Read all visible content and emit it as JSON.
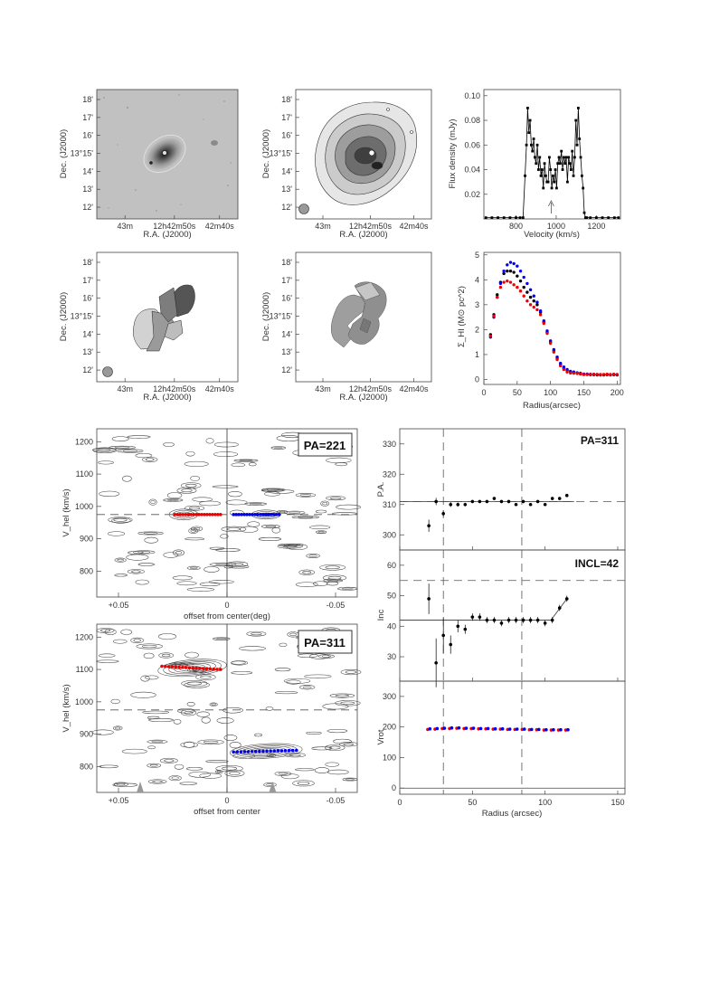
{
  "chart_data": [
    {
      "type": "image",
      "panel": "optical",
      "xlabel": "R.A. (J2000)",
      "ylabel": "Dec. (J2000)",
      "x_ticks": [
        "43m",
        "12h42m50s",
        "42m40s"
      ],
      "y_ticks": [
        "18'",
        "17'",
        "16'",
        "13°15'",
        "14'",
        "13'",
        "12'"
      ]
    },
    {
      "type": "contour",
      "panel": "HI total intensity",
      "xlabel": "R.A. (J2000)",
      "ylabel": "Dec. (J2000)",
      "x_ticks": [
        "43m",
        "12h42m50s",
        "42m40s"
      ],
      "y_ticks": [
        "18'",
        "17'",
        "16'",
        "13°15'",
        "14'",
        "13'",
        "12'"
      ]
    },
    {
      "type": "line",
      "panel": "global HI profile",
      "xlabel": "Velocity (km/s)",
      "ylabel": "Flux density (mJy)",
      "xlim": [
        640,
        1320
      ],
      "ylim": [
        0,
        0.105
      ],
      "x_ticks": [
        800,
        1000,
        1200
      ],
      "y_ticks": [
        0.02,
        0.04,
        0.06,
        0.08,
        0.1
      ],
      "systemic_marker_x": 975,
      "x": [
        650,
        680,
        710,
        740,
        770,
        800,
        820,
        835,
        845,
        852,
        858,
        864,
        870,
        876,
        882,
        888,
        894,
        900,
        906,
        912,
        918,
        924,
        930,
        936,
        942,
        948,
        954,
        960,
        966,
        972,
        978,
        984,
        990,
        996,
        1002,
        1008,
        1014,
        1020,
        1026,
        1032,
        1038,
        1044,
        1050,
        1056,
        1062,
        1068,
        1074,
        1080,
        1086,
        1092,
        1098,
        1104,
        1110,
        1116,
        1122,
        1128,
        1134,
        1140,
        1146,
        1152,
        1170,
        1200,
        1230,
        1260,
        1290,
        1310
      ],
      "y": [
        0.001,
        0.001,
        0.001,
        0.001,
        0.001,
        0.001,
        0.001,
        0.001,
        0.035,
        0.06,
        0.09,
        0.07,
        0.08,
        0.06,
        0.055,
        0.065,
        0.05,
        0.045,
        0.06,
        0.04,
        0.05,
        0.035,
        0.04,
        0.025,
        0.045,
        0.035,
        0.03,
        0.03,
        0.05,
        0.04,
        0.025,
        0.035,
        0.03,
        0.04,
        0.025,
        0.045,
        0.05,
        0.045,
        0.055,
        0.04,
        0.05,
        0.045,
        0.05,
        0.03,
        0.05,
        0.045,
        0.04,
        0.055,
        0.035,
        0.05,
        0.08,
        0.06,
        0.09,
        0.065,
        0.05,
        0.035,
        0.025,
        0.005,
        0.001,
        0.001,
        0.001,
        0.001,
        0.001,
        0.001,
        0.001,
        0.001
      ]
    },
    {
      "type": "image",
      "panel": "velocity field (receding/approaching)",
      "xlabel": "R.A. (J2000)",
      "ylabel": "Dec. (J2000)",
      "x_ticks": [
        "43m",
        "12h42m50s",
        "42m40s"
      ],
      "y_ticks": [
        "18'",
        "17'",
        "16'",
        "13°15'",
        "14'",
        "13'",
        "12'"
      ]
    },
    {
      "type": "image",
      "panel": "velocity dispersion",
      "xlabel": "R.A. (J2000)",
      "ylabel": "Dec. (J2000)",
      "x_ticks": [
        "43m",
        "12h42m50s",
        "42m40s"
      ],
      "y_ticks": [
        "18'",
        "17'",
        "16'",
        "13°15'",
        "14'",
        "13'",
        "12'"
      ]
    },
    {
      "type": "scatter",
      "panel": "surface density profile",
      "xlabel": "Radius(arcsec)",
      "ylabel": "Σ_HI (M⊙ pc^2)",
      "xlim": [
        0,
        205
      ],
      "ylim": [
        -0.2,
        5.1
      ],
      "x_ticks": [
        0,
        50,
        100,
        150,
        200
      ],
      "y_ticks": [
        0,
        1,
        2,
        3,
        4,
        5
      ],
      "x": [
        10,
        15,
        20,
        25,
        30,
        35,
        40,
        45,
        50,
        55,
        60,
        65,
        70,
        75,
        80,
        85,
        90,
        95,
        100,
        105,
        110,
        115,
        120,
        125,
        130,
        135,
        140,
        145,
        150,
        155,
        160,
        165,
        170,
        175,
        180,
        185,
        190,
        195,
        200
      ],
      "series": [
        {
          "values": [
            1.8,
            2.6,
            3.4,
            3.9,
            4.25,
            4.35,
            4.35,
            4.3,
            4.15,
            3.95,
            3.7,
            3.5,
            3.3,
            3.15,
            3.0,
            2.7,
            2.3,
            1.9,
            1.5,
            1.15,
            0.85,
            0.6,
            0.45,
            0.35,
            0.3,
            0.28,
            0.25,
            0.22,
            0.2,
            0.2,
            0.19,
            0.19,
            0.18,
            0.18,
            0.18,
            0.19,
            0.18,
            0.19,
            0.18
          ],
          "color": "#000000"
        },
        {
          "values": [
            1.7,
            2.5,
            3.3,
            3.85,
            4.35,
            4.6,
            4.7,
            4.65,
            4.55,
            4.35,
            4.1,
            3.85,
            3.6,
            3.35,
            3.1,
            2.75,
            2.35,
            1.95,
            1.55,
            1.2,
            0.9,
            0.65,
            0.5,
            0.4,
            0.33,
            0.3,
            0.27,
            0.25,
            0.22,
            0.22,
            0.21,
            0.2,
            0.2,
            0.19,
            0.19,
            0.2,
            0.19,
            0.2,
            0.19
          ],
          "color": "#0000ee"
        },
        {
          "values": [
            1.75,
            2.55,
            3.3,
            3.7,
            3.9,
            3.95,
            3.9,
            3.8,
            3.7,
            3.55,
            3.35,
            3.15,
            3.0,
            2.9,
            2.8,
            2.6,
            2.25,
            1.85,
            1.45,
            1.1,
            0.8,
            0.55,
            0.4,
            0.3,
            0.26,
            0.25,
            0.24,
            0.22,
            0.2,
            0.2,
            0.2,
            0.21,
            0.2,
            0.2,
            0.2,
            0.21,
            0.2,
            0.21,
            0.2
          ],
          "color": "#ee0000"
        }
      ]
    },
    {
      "type": "contour",
      "panel": "position-velocity diagram minor axis",
      "label": "PA=221",
      "xlabel": "offset from center(deg)",
      "ylabel": "V_hel (km/s)",
      "xlim": [
        0.06,
        -0.06
      ],
      "ylim": [
        720,
        1240
      ],
      "x_ticks": [
        "+0.05",
        "0",
        "-0.05"
      ],
      "y_ticks": [
        800,
        900,
        1000,
        1100,
        1200
      ],
      "systemic_velocity": 975,
      "red_points": {
        "x_range": [
          0.024,
          0.003
        ],
        "v": 975
      },
      "blue_points": {
        "x_range": [
          -0.003,
          -0.024
        ],
        "v": 975
      }
    },
    {
      "type": "contour",
      "panel": "position-velocity diagram major axis",
      "label": "PA=311",
      "xlabel": "offset from center",
      "ylabel": "V_hel (km/s)",
      "xlim": [
        0.06,
        -0.06
      ],
      "ylim": [
        720,
        1240
      ],
      "x_ticks": [
        "+0.05",
        "0",
        "-0.05"
      ],
      "y_ticks": [
        800,
        900,
        1000,
        1100,
        1200
      ],
      "systemic_velocity": 975,
      "red_points": {
        "x_range": [
          0.03,
          0.003
        ],
        "v": [
          1110,
          1100
        ]
      },
      "blue_points": {
        "x_range": [
          -0.003,
          -0.032
        ],
        "v": [
          845,
          850
        ]
      }
    },
    {
      "type": "scatter",
      "panel": "position angle",
      "label": "PA=311",
      "ylabel": "P.A.",
      "xlim": [
        0,
        155
      ],
      "ylim": [
        295,
        335
      ],
      "y_ticks": [
        300,
        310,
        320,
        330
      ],
      "hline": 311,
      "x": [
        20,
        25,
        30,
        35,
        40,
        45,
        50,
        55,
        60,
        65,
        70,
        75,
        80,
        85,
        90,
        95,
        100,
        105,
        110,
        115
      ],
      "y": [
        303,
        311,
        307,
        310,
        310,
        310,
        311,
        311,
        311,
        312,
        311,
        311,
        310,
        311,
        310,
        311,
        310,
        312,
        312,
        313
      ],
      "err": [
        2,
        1.2,
        1,
        0.8,
        0.7,
        0.6,
        0.5,
        0.5,
        0.5,
        0.5,
        0.5,
        0.5,
        0.5,
        0.5,
        0.5,
        0.5,
        0.5,
        0.5,
        0.5,
        0.5
      ]
    },
    {
      "type": "scatter",
      "panel": "inclination",
      "label": "INCL=42",
      "ylabel": "Inc",
      "xlim": [
        0,
        155
      ],
      "ylim": [
        22,
        65
      ],
      "y_ticks": [
        30,
        40,
        50,
        60
      ],
      "hline_solid": 42,
      "hline_dashed": 55,
      "x": [
        20,
        25,
        30,
        35,
        40,
        45,
        50,
        55,
        60,
        65,
        70,
        75,
        80,
        85,
        90,
        95,
        100,
        105,
        110,
        115
      ],
      "y": [
        49,
        28,
        37,
        34,
        40,
        39,
        43,
        43,
        42,
        42,
        41,
        42,
        42,
        42,
        42,
        42,
        41,
        42,
        46,
        49
      ],
      "err": [
        5,
        8,
        6,
        3,
        2,
        1.5,
        1.2,
        1.2,
        1,
        1,
        1,
        1,
        1,
        1,
        1,
        1,
        1,
        1,
        1,
        1
      ]
    },
    {
      "type": "scatter",
      "panel": "rotation curve",
      "ylabel": "Vrot",
      "xlabel": "Radius (arcsec)",
      "xlim": [
        0,
        155
      ],
      "ylim": [
        -20,
        350
      ],
      "x_ticks": [
        0,
        50,
        100,
        150
      ],
      "y_ticks": [
        0,
        100,
        200,
        300
      ],
      "x": [
        20,
        25,
        30,
        35,
        40,
        45,
        50,
        55,
        60,
        65,
        70,
        75,
        80,
        85,
        90,
        95,
        100,
        105,
        110,
        115
      ],
      "series": [
        {
          "values": [
            192,
            193,
            195,
            195,
            196,
            195,
            195,
            194,
            194,
            193,
            193,
            192,
            192,
            192,
            191,
            191,
            190,
            190,
            190,
            190
          ],
          "color": "#ee0000"
        },
        {
          "values": [
            194,
            195,
            196,
            197,
            197,
            196,
            196,
            195,
            195,
            194,
            194,
            193,
            193,
            193,
            192,
            192,
            191,
            191,
            191,
            191
          ],
          "color": "#0000ee"
        }
      ],
      "vlines_dashed": [
        30,
        84
      ]
    }
  ]
}
